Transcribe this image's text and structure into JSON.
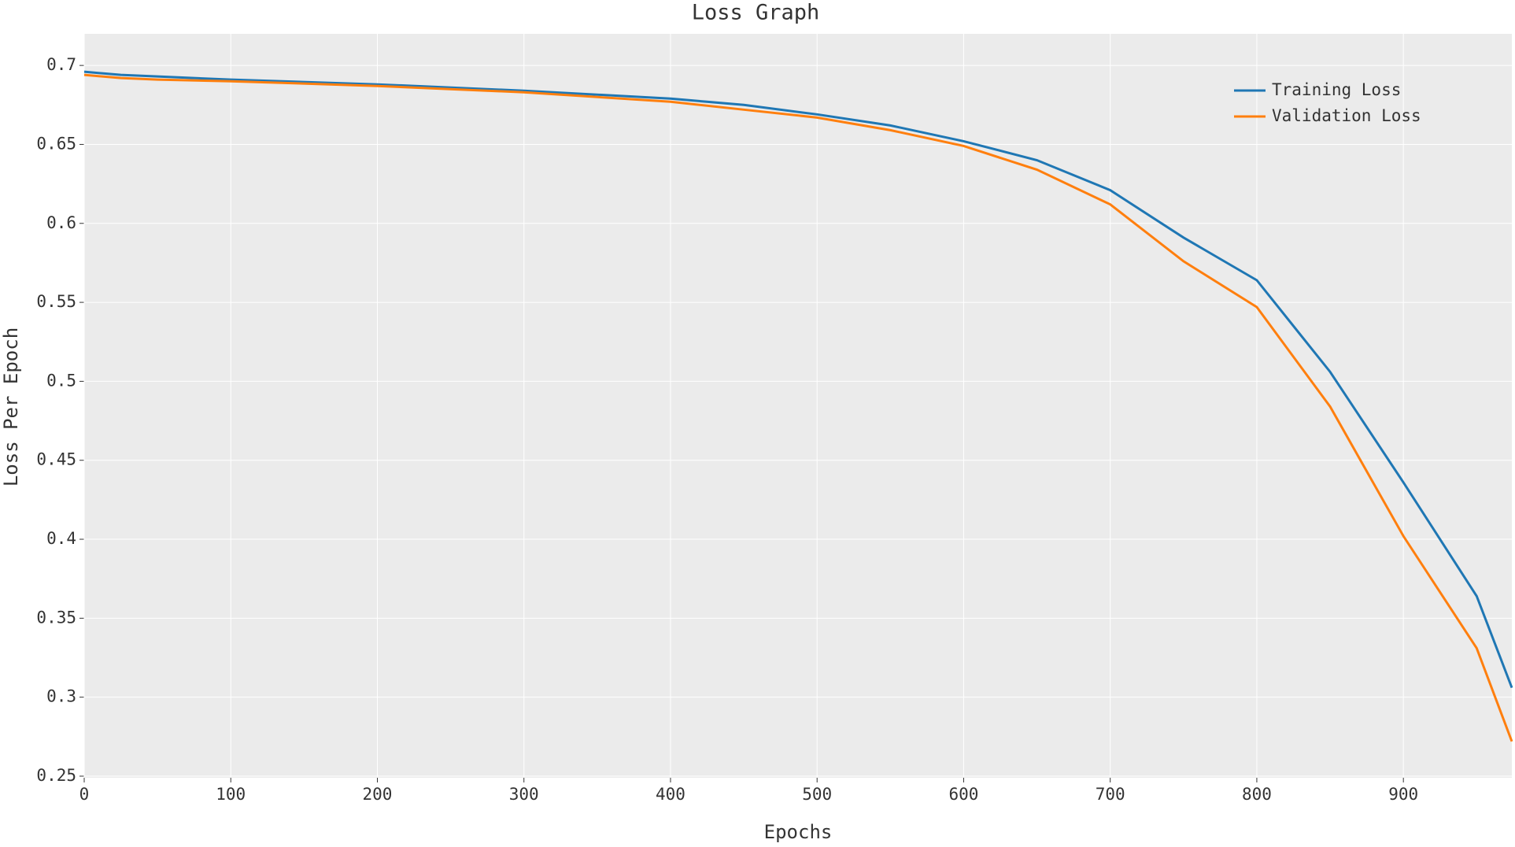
{
  "chart_data": {
    "type": "line",
    "title": "Loss Graph",
    "x_label": "Epochs",
    "y_label": "Loss Per Epoch",
    "x": [
      0,
      25,
      50,
      100,
      200,
      300,
      400,
      450,
      500,
      550,
      600,
      650,
      700,
      750,
      800,
      850,
      900,
      950,
      974
    ],
    "series": [
      {
        "name": "Training Loss",
        "color": "#1f77b4",
        "values": [
          0.696,
          0.694,
          0.693,
          0.691,
          0.688,
          0.684,
          0.679,
          0.675,
          0.669,
          0.662,
          0.652,
          0.64,
          0.621,
          0.591,
          0.564,
          0.506,
          0.436,
          0.364,
          0.306
        ]
      },
      {
        "name": "Validation Loss",
        "color": "#ff7f0e",
        "values": [
          0.694,
          0.692,
          0.691,
          0.69,
          0.687,
          0.683,
          0.677,
          0.672,
          0.667,
          0.659,
          0.649,
          0.634,
          0.612,
          0.576,
          0.547,
          0.484,
          0.402,
          0.331,
          0.272
        ]
      }
    ],
    "xlim": [
      0,
      974
    ],
    "ylim": [
      0.249,
      0.72
    ],
    "xticks": [
      0,
      100,
      200,
      300,
      400,
      500,
      600,
      700,
      800,
      900
    ],
    "yticks": [
      0.25,
      0.3,
      0.35,
      0.4,
      0.45,
      0.5,
      0.55,
      0.6,
      0.65,
      0.7
    ],
    "grid": true,
    "legend": "upper right"
  }
}
